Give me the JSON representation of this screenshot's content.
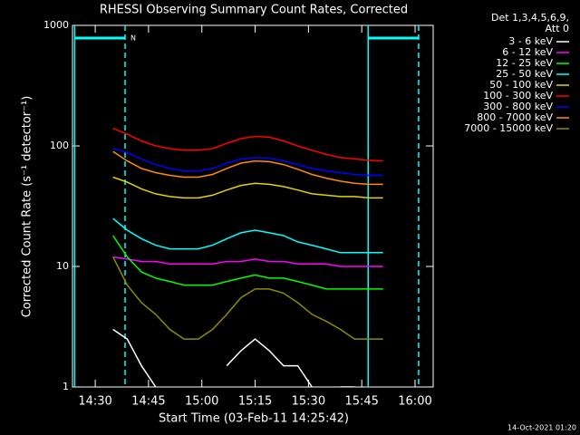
{
  "chart_data": {
    "type": "line",
    "title": "RHESSI Observing Summary Count Rates, Corrected",
    "x_label": "Start Time (03-Feb-11 14:25:42)",
    "y_label": "Corrected Count Rate (s⁻¹ detector⁻¹)",
    "legend_header": [
      "Det 1,3,4,5,6,9,",
      "Att 0"
    ],
    "footer": "14-Oct-2021 01:20",
    "log_y": true,
    "xlim": [
      863.6,
      965.1
    ],
    "ylim": [
      1,
      1000
    ],
    "xticks": [
      {
        "value": 870,
        "label": "14:30"
      },
      {
        "value": 885,
        "label": "14:45"
      },
      {
        "value": 900,
        "label": "15:00"
      },
      {
        "value": 915,
        "label": "15:15"
      },
      {
        "value": 930,
        "label": "15:30"
      },
      {
        "value": 945,
        "label": "15:45"
      },
      {
        "value": 960,
        "label": "16:00"
      }
    ],
    "yticks": [
      1,
      10,
      100,
      1000
    ],
    "intervals": [
      {
        "start": 864.2,
        "end": 878.4,
        "label": "N",
        "color": "#00ffff"
      },
      {
        "start": 946.8,
        "end": 961.0,
        "color": "#00ffff"
      }
    ],
    "x": [
      875,
      879,
      883,
      887,
      891,
      895,
      899,
      903,
      907,
      911,
      915,
      919,
      923,
      927,
      931,
      935,
      939,
      943,
      947,
      951
    ],
    "series": [
      {
        "name": "3 - 6 keV",
        "color": "#ffffff",
        "values": [
          3,
          2.5,
          1.5,
          1,
          null,
          null,
          null,
          null,
          1.5,
          2,
          2.5,
          2,
          1.5,
          1.5,
          1,
          null,
          1,
          1,
          null,
          null
        ]
      },
      {
        "name": "6 - 12 keV",
        "color": "#ff00ff",
        "values": [
          12,
          11.5,
          11,
          11,
          10.5,
          10.5,
          10.5,
          10.5,
          11,
          11,
          11.5,
          11,
          11,
          10.5,
          10.5,
          10.5,
          10,
          10,
          10,
          10
        ]
      },
      {
        "name": "12 - 25 keV",
        "color": "#00ff00",
        "values": [
          18,
          12,
          9,
          8,
          7.5,
          7,
          7,
          7,
          7.5,
          8,
          8.5,
          8,
          8,
          7.5,
          7,
          6.5,
          6.5,
          6.5,
          6.5,
          6.5
        ]
      },
      {
        "name": "25 - 50 keV",
        "color": "#00ffff",
        "values": [
          25,
          20,
          17,
          15,
          14,
          14,
          14,
          15,
          17,
          19,
          20,
          19,
          18,
          16,
          15,
          14,
          13,
          13,
          13,
          13
        ]
      },
      {
        "name": "50 - 100 keV",
        "color": "#e6d200",
        "values": [
          55,
          50,
          44,
          40,
          38,
          37,
          37,
          39,
          43,
          47,
          49,
          48,
          46,
          43,
          40,
          39,
          38,
          38,
          37,
          37
        ]
      },
      {
        "name": "100 - 300 keV",
        "color": "#ff0000",
        "values": [
          140,
          125,
          110,
          100,
          95,
          92,
          92,
          95,
          105,
          115,
          120,
          118,
          110,
          100,
          92,
          85,
          80,
          78,
          76,
          75
        ]
      },
      {
        "name": "300 - 800 keV",
        "color": "#0000ff",
        "values": [
          95,
          88,
          78,
          70,
          65,
          62,
          62,
          65,
          72,
          78,
          80,
          79,
          75,
          70,
          65,
          62,
          60,
          58,
          57,
          57
        ]
      },
      {
        "name": "800 - 7000 keV",
        "color": "#ff8c00",
        "values": [
          90,
          75,
          65,
          60,
          57,
          55,
          55,
          58,
          65,
          72,
          75,
          74,
          70,
          64,
          58,
          54,
          51,
          49,
          48,
          48
        ]
      },
      {
        "name": "7000 - 15000 keV",
        "color": "#8b8b00",
        "values": [
          12,
          7,
          5,
          4,
          3,
          2.5,
          2.5,
          3,
          4,
          5.5,
          6.5,
          6.5,
          6,
          5,
          4,
          3.5,
          3,
          2.5,
          2.5,
          2.5
        ]
      }
    ]
  }
}
